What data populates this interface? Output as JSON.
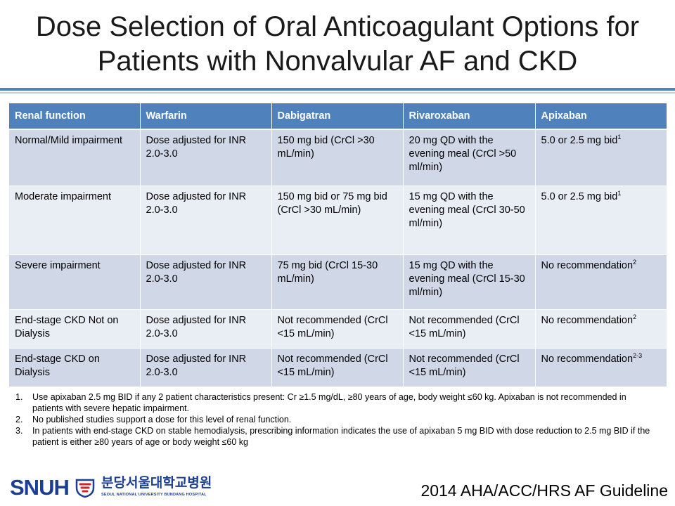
{
  "title": {
    "line1": "Dose Selection of Oral Anticoagulant Options for",
    "line2": "Patients with Nonvalvular AF and CKD"
  },
  "table": {
    "headers": [
      "Renal function",
      "Warfarin",
      "Dabigatran",
      "Rivaroxaban",
      "Apixaban"
    ],
    "rows": [
      {
        "renal": "Normal/Mild impairment",
        "warfarin": "Dose adjusted for INR 2.0-3.0",
        "dabigatran": "150 mg bid (CrCl >30 mL/min)",
        "rivaroxaban": "20 mg QD with the evening meal (CrCl >50 ml/min)",
        "apixaban": "5.0 or 2.5 mg bid",
        "apixaban_sup": "1"
      },
      {
        "renal": "Moderate impairment",
        "warfarin": "Dose adjusted for INR 2.0-3.0",
        "dabigatran": "150 mg bid or 75 mg bid (CrCl >30 mL/min)",
        "rivaroxaban": "15 mg QD with the evening meal (CrCl 30-50 ml/min)",
        "apixaban": "5.0 or 2.5 mg bid",
        "apixaban_sup": "1"
      },
      {
        "renal": "Severe impairment",
        "warfarin": "Dose adjusted for INR 2.0-3.0",
        "dabigatran": "75 mg bid (CrCl 15-30 mL/min)",
        "rivaroxaban": "15 mg QD with the evening meal (CrCl 15-30 ml/min)",
        "apixaban": "No recommendation",
        "apixaban_sup": "2"
      },
      {
        "renal": "End-stage CKD Not on Dialysis",
        "warfarin": "Dose adjusted for INR 2.0-3.0",
        "dabigatran": "Not recommended (CrCl <15 mL/min)",
        "rivaroxaban": "Not recommended (CrCl <15 mL/min)",
        "apixaban": "No recommendation",
        "apixaban_sup": "2"
      },
      {
        "renal": "End-stage CKD on Dialysis",
        "warfarin": "Dose adjusted for INR 2.0-3.0",
        "dabigatran": "Not recommended (CrCl <15 mL/min)",
        "rivaroxaban": "Not recommended (CrCl <15 mL/min)",
        "apixaban": "No recommendation",
        "apixaban_sup": "2-3"
      }
    ]
  },
  "footnotes": [
    {
      "num": "1.",
      "text": "Use apixaban 2.5 mg BID if any 2 patient characteristics present: Cr ≥1.5 mg/dL, ≥80 years of age, body weight ≤60 kg. Apixaban is not recommended in patients with severe hepatic impairment."
    },
    {
      "num": "2.",
      "text": "No published studies support a dose for this level of renal function."
    },
    {
      "num": "3.",
      "text": "In patients with end-stage CKD on stable hemodialysis, prescribing information indicates the use of apixaban 5 mg BID with dose reduction to 2.5 mg BID if the patient is either ≥80 years of age or body weight ≤60 kg"
    }
  ],
  "logo": {
    "abbr": "SNUH",
    "korean": "분당서울대학교병원",
    "english": "SEOUL NATIONAL UNIVERSITY BUNDANG HOSPITAL",
    "color": "#1c3f94"
  },
  "source": "2014 AHA/ACC/HRS AF Guideline",
  "colors": {
    "header_bg": "#4f81bd",
    "row_dark": "#d0d8e8",
    "row_light": "#e9edf4"
  }
}
